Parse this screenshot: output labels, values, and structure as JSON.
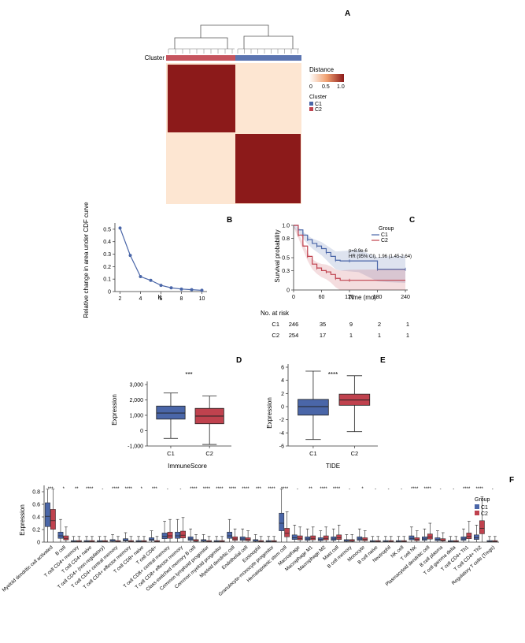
{
  "colors": {
    "c1": "#4a66a8",
    "c2": "#c0424e",
    "heat_dark": "#8c1a1a",
    "heat_light": "#fde6d2"
  },
  "panels": {
    "A": "A",
    "B": "B",
    "C": "C",
    "D": "D",
    "E": "E",
    "F": "F"
  },
  "chart_data": [
    {
      "panel": "A",
      "type": "heatmap",
      "cluster_label": "Cluster",
      "legend_distance_title": "Distance",
      "legend_ticks": [
        "0",
        "0.5",
        "1.0"
      ],
      "legend_cluster_title": "Cluster",
      "legend_cluster_items": [
        "C1",
        "C2"
      ],
      "cluster_order": [
        "C2",
        "C1"
      ]
    },
    {
      "panel": "B",
      "type": "line",
      "xlabel": "K",
      "ylabel": "Relative change in area under CDF curve",
      "x": [
        2,
        3,
        4,
        5,
        6,
        7,
        8,
        9,
        10
      ],
      "y": [
        0.51,
        0.29,
        0.12,
        0.09,
        0.05,
        0.03,
        0.02,
        0.015,
        0.01
      ],
      "xticks": [
        "2",
        "4",
        "6",
        "8",
        "10"
      ],
      "yticks": [
        "0",
        "0.1",
        "0.2",
        "0.3",
        "0.4",
        "0.5"
      ],
      "ylim": [
        0,
        0.55
      ]
    },
    {
      "panel": "C",
      "type": "line",
      "xlabel": "Time (mo)",
      "ylabel": "Survival probability",
      "xticks": [
        "0",
        "60",
        "120",
        "180",
        "240"
      ],
      "yticks": [
        "0",
        "0.3",
        "0.5",
        "0.8",
        "1.0"
      ],
      "legend_title": "Group",
      "legend_items": [
        "C1",
        "C2"
      ],
      "annotation_p": "p=8.9e-6",
      "annotation_hr": "HR (95% CI), 1.96 (1.45-2.64)",
      "series": [
        {
          "name": "C1",
          "x": [
            0,
            10,
            20,
            30,
            40,
            50,
            60,
            70,
            80,
            90,
            100,
            120,
            140,
            180,
            200,
            240
          ],
          "y": [
            1.0,
            0.93,
            0.85,
            0.78,
            0.72,
            0.68,
            0.64,
            0.58,
            0.52,
            0.46,
            0.45,
            0.45,
            0.45,
            0.32,
            0.32,
            0.32
          ]
        },
        {
          "name": "C2",
          "x": [
            0,
            10,
            20,
            30,
            40,
            50,
            60,
            70,
            80,
            90,
            100,
            120,
            240
          ],
          "y": [
            1.0,
            0.85,
            0.68,
            0.52,
            0.4,
            0.34,
            0.3,
            0.28,
            0.24,
            0.18,
            0.15,
            0.15,
            0.15
          ]
        }
      ],
      "risk_title": "No. at risk",
      "risk_table": [
        {
          "group": "C1",
          "values": [
            "246",
            "35",
            "9",
            "2",
            "1"
          ]
        },
        {
          "group": "C2",
          "values": [
            "254",
            "17",
            "1",
            "1",
            "1"
          ]
        }
      ]
    },
    {
      "panel": "D",
      "type": "box",
      "xlabel": "ImmuneScore",
      "ylabel": "Expression",
      "categories": [
        "C1",
        "C2"
      ],
      "yticks": [
        "-1,000",
        "0",
        "1,000",
        "2,000",
        "3,000"
      ],
      "ylim": [
        -1000,
        3000
      ],
      "significance": "***",
      "boxes": [
        {
          "name": "C1",
          "min": -500,
          "q1": 750,
          "median": 1150,
          "q3": 1600,
          "max": 2450
        },
        {
          "name": "C2",
          "min": -900,
          "q1": 450,
          "median": 950,
          "q3": 1450,
          "max": 2250
        }
      ]
    },
    {
      "panel": "E",
      "type": "box",
      "xlabel": "TIDE",
      "ylabel": "Expression",
      "categories": [
        "C1",
        "C2"
      ],
      "yticks": [
        "-6",
        "-4",
        "-2",
        "0",
        "2",
        "4",
        "6"
      ],
      "ylim": [
        -6,
        6
      ],
      "significance": "****",
      "boxes": [
        {
          "name": "C1",
          "min": -5.0,
          "q1": -1.3,
          "median": 0.0,
          "q3": 1.1,
          "max": 5.4
        },
        {
          "name": "C2",
          "min": -3.8,
          "q1": 0.2,
          "median": 1.0,
          "q3": 1.9,
          "max": 4.7
        }
      ]
    },
    {
      "panel": "F",
      "type": "box",
      "ylabel": "Expression",
      "yticks": [
        "0",
        "0.2",
        "0.4",
        "0.6",
        "0.8"
      ],
      "ylim": [
        0,
        0.85
      ],
      "legend_title": "Group",
      "legend_items": [
        "C1",
        "C2"
      ],
      "categories": [
        "Myeloid dendritic cell activated",
        "B cell",
        "T cell CD4+ memory",
        "T cell CD4+ naive",
        "T cell CD4+ (non-regulatory)",
        "T cell CD4+ central memory",
        "T cell CD4+ effector memory",
        "T cell CD8+ naive",
        "T cell CD8+",
        "T cell CD8+ central memory",
        "T cell CD8+ effector memory",
        "Class-switched memory B cell",
        "Common lymphoid progenitor",
        "Common myeloid progenitor",
        "Myeloid dendritic cell",
        "Endothelial cell",
        "Eosinophil",
        "Granulocyte-monocyte progenitor",
        "Hematopoietic stem cell",
        "Macrophage",
        "Macrophage M1",
        "Macrophage M2",
        "Mast cell",
        "B cell memory",
        "Monocyte",
        "B cell naive",
        "Neutrophil",
        "NK cell",
        "T cell NK",
        "Plasmacytoid dendritic cell",
        "B cell plasma",
        "T cell gamma delta",
        "T cell CD4+ Th1",
        "T cell CD4+ Th2",
        "Regulatory T cells (Tregs)"
      ],
      "significance": [
        "***",
        "*",
        "**",
        "****",
        "-",
        "****",
        "****",
        "*",
        "***",
        "-",
        "-",
        "****",
        "****",
        "****",
        "****",
        "****",
        "***",
        "****",
        "****",
        "-",
        "**",
        "****",
        "****",
        "-",
        "*",
        "-",
        "-",
        "-",
        "****",
        "****",
        "-",
        "-",
        "****",
        "****",
        "-"
      ],
      "c1_median": [
        0.41,
        0.1,
        0.01,
        0.01,
        0.01,
        0.02,
        0.03,
        0.01,
        0.04,
        0.09,
        0.1,
        0.05,
        0.02,
        0.01,
        0.1,
        0.05,
        0.02,
        0.01,
        0.3,
        0.07,
        0.05,
        0.04,
        0.05,
        0.02,
        0.05,
        0.01,
        0.01,
        0.01,
        0.06,
        0.05,
        0.04,
        0.01,
        0.05,
        0.07,
        0.01
      ],
      "c2_median": [
        0.34,
        0.06,
        0.01,
        0.01,
        0.01,
        0.01,
        0.01,
        0.01,
        0.01,
        0.1,
        0.11,
        0.02,
        0.01,
        0.01,
        0.05,
        0.04,
        0.01,
        0.01,
        0.14,
        0.06,
        0.06,
        0.06,
        0.07,
        0.02,
        0.04,
        0.01,
        0.01,
        0.01,
        0.04,
        0.08,
        0.03,
        0.01,
        0.09,
        0.22,
        0.01
      ]
    }
  ]
}
